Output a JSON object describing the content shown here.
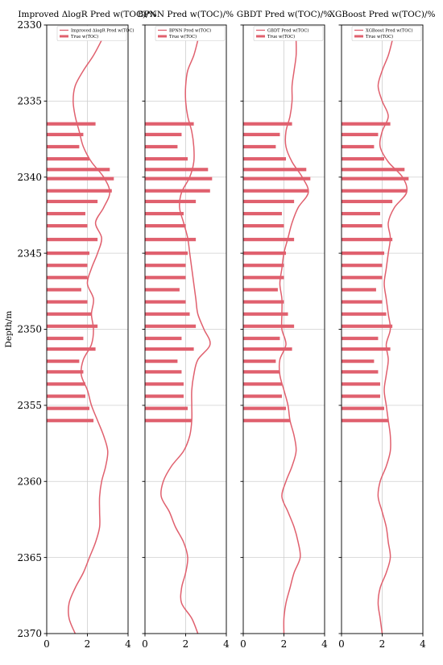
{
  "chart_data": {
    "type": "well-log",
    "ylabel": "Depth/m",
    "ylim": [
      2330,
      2370
    ],
    "xlim": [
      0,
      4
    ],
    "y_ticks": [
      2330,
      2335,
      2340,
      2345,
      2350,
      2355,
      2360,
      2365,
      2370
    ],
    "x_ticks": [
      0,
      2,
      4
    ],
    "grid": true,
    "line_color": "#e0606e",
    "bar_color": "#e0606e",
    "true_toc": {
      "depths": [
        2336.5,
        2337.2,
        2338,
        2338.8,
        2339.5,
        2340.1,
        2340.9,
        2341.6,
        2342.4,
        2343.2,
        2344.1,
        2345,
        2345.8,
        2346.6,
        2347.4,
        2348.2,
        2349,
        2349.8,
        2350.6,
        2351.3,
        2352.1,
        2352.8,
        2353.6,
        2354.4,
        2355.2,
        2356
      ],
      "values": [
        2.4,
        1.8,
        1.6,
        2.1,
        3.1,
        3.3,
        3.2,
        2.5,
        1.9,
        2.0,
        2.5,
        2.1,
        2.0,
        2.0,
        1.7,
        2.0,
        2.2,
        2.5,
        1.8,
        2.4,
        1.6,
        1.8,
        1.9,
        1.9,
        2.1,
        2.3
      ]
    },
    "panels": [
      {
        "title": "Improved ΔlogR Pred w(TOC)/%",
        "pred_legend": "Improved ΔlogR Pred w(TOC)",
        "true_legend": "True w(TOC)",
        "depths": [
          2331,
          2332,
          2333,
          2334,
          2335,
          2336,
          2337,
          2338,
          2339,
          2340,
          2341,
          2342,
          2343,
          2344,
          2345,
          2346,
          2347,
          2348,
          2349,
          2350,
          2351,
          2352,
          2353,
          2354,
          2355,
          2356,
          2357,
          2358,
          2359,
          2360,
          2361,
          2362,
          2363,
          2364,
          2365,
          2366,
          2367,
          2368,
          2369,
          2370
        ],
        "values": [
          2.7,
          2.3,
          1.8,
          1.4,
          1.3,
          1.4,
          1.6,
          1.8,
          2.2,
          2.8,
          3.1,
          2.8,
          2.4,
          2.7,
          2.5,
          2.2,
          2.0,
          2.3,
          2.2,
          2.3,
          2.2,
          1.8,
          1.7,
          2.0,
          2.2,
          2.5,
          2.8,
          3.0,
          2.9,
          2.7,
          2.6,
          2.6,
          2.6,
          2.4,
          2.1,
          1.8,
          1.4,
          1.1,
          1.1,
          1.4
        ]
      },
      {
        "title": "BPNN Pred w(TOC)/%",
        "pred_legend": "BPNN Pred w(TOC)",
        "true_legend": "True w(TOC)",
        "depths": [
          2331,
          2332,
          2333,
          2334,
          2335,
          2336,
          2337,
          2338,
          2339,
          2340,
          2341,
          2342,
          2343,
          2344,
          2345,
          2346,
          2347,
          2348,
          2349,
          2350,
          2351,
          2352,
          2353,
          2354,
          2355,
          2356,
          2357,
          2358,
          2359,
          2360,
          2361,
          2362,
          2363,
          2364,
          2365,
          2366,
          2367,
          2368,
          2369,
          2370
        ],
        "values": [
          2.6,
          2.4,
          2.1,
          2.0,
          2.0,
          2.1,
          2.3,
          2.4,
          2.4,
          2.2,
          1.8,
          1.7,
          1.9,
          2.1,
          2.2,
          2.3,
          2.4,
          2.5,
          2.6,
          2.9,
          3.2,
          2.6,
          2.4,
          2.3,
          2.3,
          2.3,
          2.2,
          1.9,
          1.3,
          0.9,
          0.8,
          1.2,
          1.5,
          1.9,
          2.1,
          2.0,
          1.8,
          1.8,
          2.3,
          2.6
        ]
      },
      {
        "title": "GBDT Pred w(TOC)/%",
        "pred_legend": "GBDT Pred w(TOC)",
        "true_legend": "True w(TOC)",
        "depths": [
          2331,
          2332,
          2333,
          2334,
          2335,
          2336,
          2337,
          2338,
          2339,
          2340,
          2341,
          2342,
          2343,
          2344,
          2345,
          2346,
          2347,
          2348,
          2349,
          2350,
          2351,
          2352,
          2353,
          2354,
          2355,
          2356,
          2357,
          2358,
          2359,
          2360,
          2361,
          2362,
          2363,
          2364,
          2365,
          2366,
          2367,
          2368,
          2369,
          2370
        ],
        "values": [
          2.6,
          2.6,
          2.5,
          2.4,
          2.4,
          2.3,
          2.1,
          2.1,
          2.4,
          2.9,
          3.2,
          2.7,
          2.4,
          2.2,
          2.0,
          1.9,
          1.8,
          1.9,
          1.9,
          1.9,
          2.1,
          1.8,
          1.8,
          2.0,
          2.2,
          2.3,
          2.5,
          2.6,
          2.4,
          2.1,
          1.9,
          2.2,
          2.5,
          2.7,
          2.8,
          2.5,
          2.3,
          2.1,
          2.0,
          2.0
        ]
      },
      {
        "title": "XGBoost Pred w(TOC)/%",
        "pred_legend": "XGBoost Pred w(TOC)",
        "true_legend": "True w(TOC)",
        "depths": [
          2331,
          2332,
          2333,
          2334,
          2335,
          2336,
          2337,
          2338,
          2339,
          2340,
          2341,
          2342,
          2343,
          2344,
          2345,
          2346,
          2347,
          2348,
          2349,
          2350,
          2351,
          2352,
          2353,
          2354,
          2355,
          2356,
          2357,
          2358,
          2359,
          2360,
          2361,
          2362,
          2363,
          2364,
          2365,
          2366,
          2367,
          2368,
          2369,
          2370
        ],
        "values": [
          2.5,
          2.3,
          2.0,
          1.8,
          2.0,
          2.3,
          2.0,
          1.9,
          2.3,
          3.0,
          3.2,
          2.6,
          2.3,
          2.4,
          2.3,
          2.2,
          2.1,
          2.2,
          2.3,
          2.4,
          2.2,
          2.3,
          2.2,
          2.1,
          2.2,
          2.3,
          2.4,
          2.4,
          2.2,
          1.9,
          1.8,
          2.0,
          2.2,
          2.3,
          2.4,
          2.2,
          1.9,
          1.8,
          1.9,
          2.0
        ]
      }
    ]
  }
}
